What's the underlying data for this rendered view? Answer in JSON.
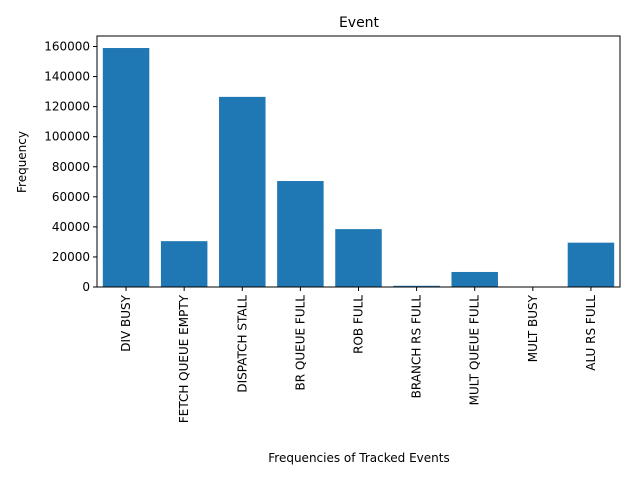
{
  "chart_data": {
    "type": "bar",
    "title": "Event",
    "xlabel": "Frequencies of Tracked Events",
    "ylabel": "Frequency",
    "categories": [
      "DIV BUSY",
      "FETCH QUEUE EMPTY",
      "DISPATCH STALL",
      "BR QUEUE FULL",
      "ROB FULL",
      "BRANCH RS FULL",
      "MULT QUEUE FULL",
      "MULT BUSY",
      "ALU RS FULL"
    ],
    "values": [
      159000,
      30500,
      126500,
      70500,
      38500,
      800,
      10000,
      0,
      29500
    ],
    "ylim": [
      0,
      167000
    ],
    "yticks": [
      0,
      20000,
      40000,
      60000,
      80000,
      100000,
      120000,
      140000,
      160000
    ],
    "grid": false,
    "legend": "none",
    "colors": {
      "bar": "#1f77b4",
      "axis": "#000000",
      "background": "#ffffff"
    }
  }
}
